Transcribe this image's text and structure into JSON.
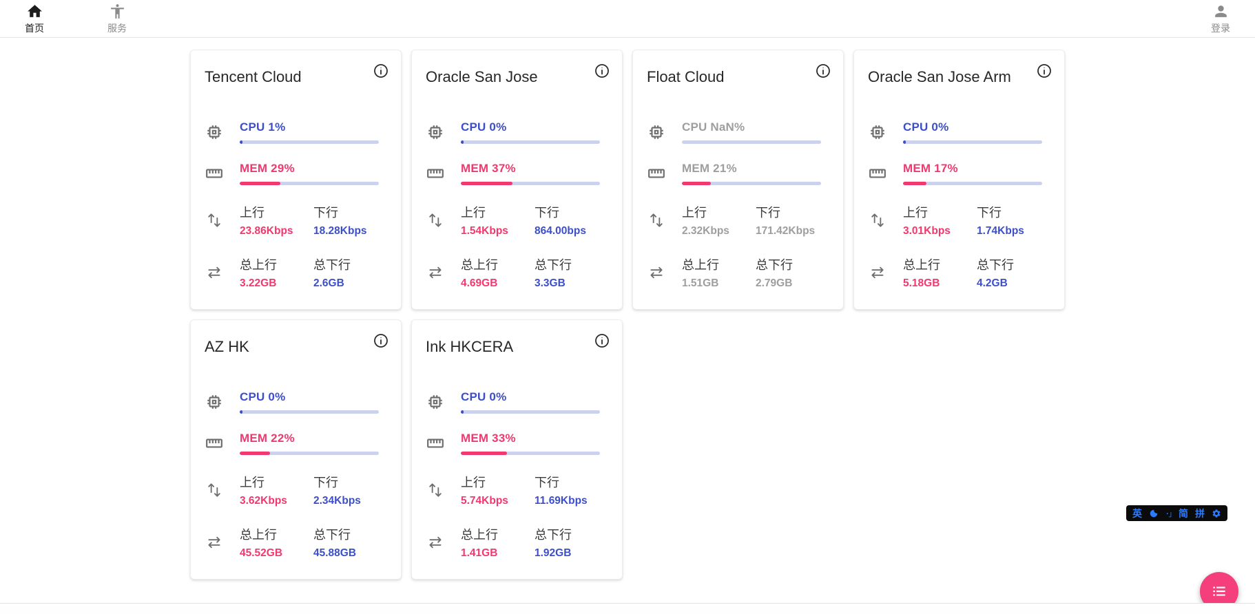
{
  "nav": {
    "home": {
      "label": "首页"
    },
    "services": {
      "label": "服务"
    },
    "login": {
      "label": "登录"
    }
  },
  "labels": {
    "upload": "上行",
    "download": "下行",
    "total_upload": "总上行",
    "total_download": "总下行"
  },
  "colors": {
    "accent_blue": "#3d4fc8",
    "accent_pink": "#f1386f",
    "bar_track": "#cdd2ec",
    "offline_gray": "#9e9e9e",
    "fab_pink": "#f43f7c",
    "ime_blue": "#2b7bff"
  },
  "servers": [
    {
      "name": "Tencent Cloud",
      "cpu_label": "CPU 1%",
      "cpu_pct": 1,
      "mem_label": "MEM 29%",
      "mem_pct": 29,
      "upload": "23.86Kbps",
      "download": "18.28Kbps",
      "total_upload": "3.22GB",
      "total_download": "2.6GB",
      "online": true
    },
    {
      "name": "Oracle San Jose",
      "cpu_label": "CPU 0%",
      "cpu_pct": 0,
      "mem_label": "MEM 37%",
      "mem_pct": 37,
      "upload": "1.54Kbps",
      "download": "864.00bps",
      "total_upload": "4.69GB",
      "total_download": "3.3GB",
      "online": true
    },
    {
      "name": "Float Cloud",
      "cpu_label": "CPU NaN%",
      "cpu_pct": 0,
      "mem_label": "MEM 21%",
      "mem_pct": 21,
      "upload": "2.32Kbps",
      "download": "171.42Kbps",
      "total_upload": "1.51GB",
      "total_download": "2.79GB",
      "online": false
    },
    {
      "name": "Oracle San Jose Arm",
      "cpu_label": "CPU 0%",
      "cpu_pct": 0,
      "mem_label": "MEM 17%",
      "mem_pct": 17,
      "upload": "3.01Kbps",
      "download": "1.74Kbps",
      "total_upload": "5.18GB",
      "total_download": "4.2GB",
      "online": true
    },
    {
      "name": "AZ HK",
      "cpu_label": "CPU 0%",
      "cpu_pct": 0,
      "mem_label": "MEM 22%",
      "mem_pct": 22,
      "upload": "3.62Kbps",
      "download": "2.34Kbps",
      "total_upload": "45.52GB",
      "total_download": "45.88GB",
      "online": true
    },
    {
      "name": "Ink HKCERA",
      "cpu_label": "CPU 0%",
      "cpu_pct": 0,
      "mem_label": "MEM 33%",
      "mem_pct": 33,
      "upload": "5.74Kbps",
      "download": "11.69Kbps",
      "total_upload": "1.41GB",
      "total_download": "1.92GB",
      "online": true
    }
  ],
  "ime_toolbar": {
    "lang": "英",
    "punct": "･｣",
    "simplified": "简",
    "pinyin": "拼"
  }
}
